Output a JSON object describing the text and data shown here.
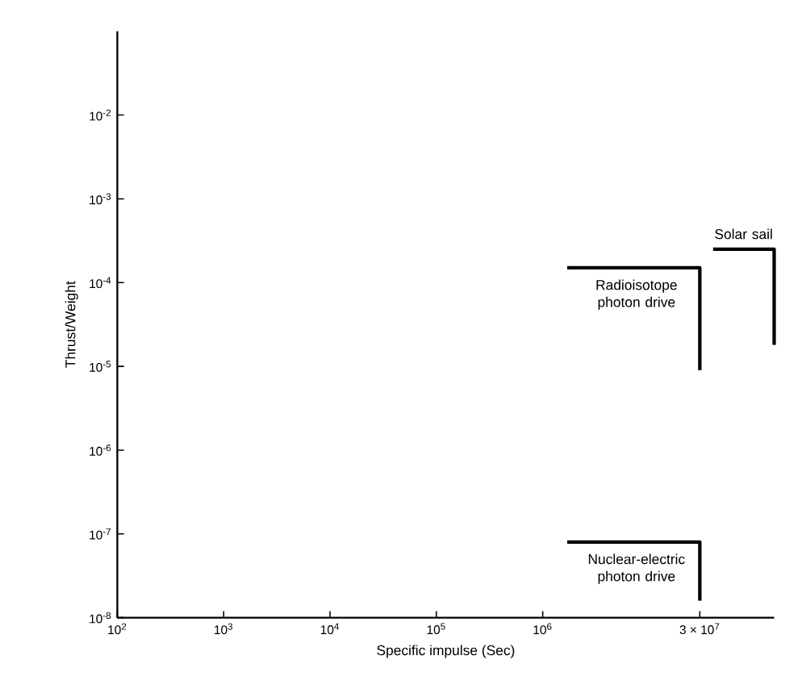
{
  "chart_data": {
    "type": "line",
    "xlabel": "Specific impulse (Sec)",
    "ylabel": "Thrust/Weight",
    "log": "xy",
    "xlim": [
      100,
      150000000
    ],
    "ylim": [
      1e-08,
      0.1
    ],
    "xticks": [
      {
        "value": 100,
        "label": "10$^{2}$"
      },
      {
        "value": 1000,
        "label": "10$^{3}$"
      },
      {
        "value": 10000,
        "label": "10$^{4}$"
      },
      {
        "value": 100000,
        "label": "10$^{5}$"
      },
      {
        "value": 1000000,
        "label": "10$^{6}$"
      },
      {
        "value": 30000000,
        "label": "3 × 10$^{7}$"
      }
    ],
    "yticks": [
      {
        "value": 1e-08,
        "label": "10$^{-8}$"
      },
      {
        "value": 1e-07,
        "label": "10$^{-7}$"
      },
      {
        "value": 1e-06,
        "label": "10$^{-6}$"
      },
      {
        "value": 1e-05,
        "label": "10$^{-5}$"
      },
      {
        "value": 0.0001,
        "label": "10$^{-4}$"
      },
      {
        "value": 0.001,
        "label": "10$^{-3}$"
      },
      {
        "value": 0.01,
        "label": "10$^{-2}$"
      }
    ],
    "marker": "none",
    "line_style": "solid",
    "series": [
      {
        "name": "Radioisotope photon drive",
        "color": "#000000",
        "x": [
          1700000,
          30000000,
          30000000
        ],
        "values": [
          0.00015,
          0.00015,
          9e-06
        ]
      },
      {
        "name": "Solar sail",
        "color": "#000000",
        "x": [
          40000000,
          150000000,
          150000000
        ],
        "values": [
          0.00025,
          0.00025,
          1.8e-05
        ]
      },
      {
        "name": "Nuclear-electric photon drive",
        "color": "#000000",
        "x": [
          1700000,
          30000000,
          30000000
        ],
        "values": [
          8e-08,
          8e-08,
          1.6e-08
        ]
      }
    ]
  }
}
